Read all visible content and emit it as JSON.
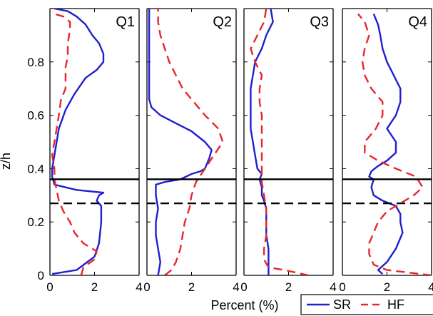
{
  "chart_data": {
    "type": "line",
    "orientation": "vertical-profiles",
    "ylabel": "z/h",
    "xlabel": "Percent (%)",
    "ylim": [
      0,
      1
    ],
    "yticks": [
      0,
      0.2,
      0.4,
      0.6,
      0.8
    ],
    "ytick_labels": [
      "0",
      "0.2",
      "0.4",
      "0.6",
      "0.8"
    ],
    "xlim": [
      0,
      4
    ],
    "xtick_labels": [
      "0",
      "2",
      "4"
    ],
    "reference_lines": [
      {
        "style": "solid",
        "z": 0.36
      },
      {
        "style": "dashed",
        "z": 0.27
      }
    ],
    "legend": {
      "placement": "bottom-right",
      "entries": [
        {
          "label": "SR",
          "color": "#1f1fcf",
          "style": "solid"
        },
        {
          "label": "HF",
          "color": "#e8272a",
          "style": "dashed"
        }
      ]
    },
    "series_styles": {
      "SR": {
        "color": "#1f1fcf",
        "dash": "solid"
      },
      "HF": {
        "color": "#e8272a",
        "dash": "dashed"
      }
    },
    "panels": [
      {
        "title": "Q1",
        "series": [
          {
            "name": "SR",
            "points": [
              [
                0.1,
                0.005
              ],
              [
                1.2,
                0.02
              ],
              [
                2.0,
                0.07
              ],
              [
                2.2,
                0.12
              ],
              [
                2.3,
                0.2
              ],
              [
                2.3,
                0.26
              ],
              [
                2.1,
                0.28
              ],
              [
                2.2,
                0.3
              ],
              [
                2.4,
                0.31
              ],
              [
                1.2,
                0.32
              ],
              [
                0.2,
                0.34
              ],
              [
                0.1,
                0.37
              ],
              [
                0.1,
                0.4
              ],
              [
                0.2,
                0.45
              ],
              [
                0.4,
                0.55
              ],
              [
                0.7,
                0.62
              ],
              [
                1.1,
                0.68
              ],
              [
                1.6,
                0.74
              ],
              [
                2.1,
                0.77
              ],
              [
                2.4,
                0.8
              ],
              [
                2.4,
                0.83
              ],
              [
                2.2,
                0.87
              ],
              [
                1.9,
                0.9
              ],
              [
                1.6,
                0.94
              ],
              [
                1.2,
                0.97
              ],
              [
                0.8,
                0.99
              ],
              [
                0.2,
                1.0
              ]
            ]
          },
          {
            "name": "HF",
            "points": [
              [
                1.4,
                0.0
              ],
              [
                1.5,
                0.03
              ],
              [
                2.0,
                0.06
              ],
              [
                2.1,
                0.09
              ],
              [
                1.5,
                0.12
              ],
              [
                1.1,
                0.16
              ],
              [
                0.9,
                0.2
              ],
              [
                0.6,
                0.24
              ],
              [
                0.4,
                0.28
              ],
              [
                0.3,
                0.32
              ],
              [
                0.2,
                0.36
              ],
              [
                0.2,
                0.4
              ],
              [
                0.1,
                0.45
              ],
              [
                0.2,
                0.5
              ],
              [
                0.3,
                0.55
              ],
              [
                0.4,
                0.6
              ],
              [
                0.5,
                0.66
              ],
              [
                0.7,
                0.7
              ],
              [
                0.7,
                0.78
              ],
              [
                0.8,
                0.82
              ],
              [
                0.8,
                0.87
              ],
              [
                0.9,
                0.92
              ],
              [
                0.9,
                0.95
              ],
              [
                0.6,
                0.97
              ],
              [
                0.2,
                0.98
              ],
              [
                0.1,
                0.99
              ]
            ]
          }
        ]
      },
      {
        "title": "Q2",
        "series": [
          {
            "name": "SR",
            "points": [
              [
                0.5,
                0.0
              ],
              [
                0.6,
                0.05
              ],
              [
                0.5,
                0.1
              ],
              [
                0.4,
                0.15
              ],
              [
                0.4,
                0.2
              ],
              [
                0.5,
                0.25
              ],
              [
                0.4,
                0.3
              ],
              [
                0.4,
                0.34
              ],
              [
                0.8,
                0.35
              ],
              [
                1.5,
                0.36
              ],
              [
                2.0,
                0.38
              ],
              [
                2.4,
                0.39
              ],
              [
                2.6,
                0.4
              ],
              [
                2.8,
                0.44
              ],
              [
                2.9,
                0.47
              ],
              [
                2.6,
                0.5
              ],
              [
                2.0,
                0.54
              ],
              [
                1.3,
                0.57
              ],
              [
                0.6,
                0.6
              ],
              [
                0.2,
                0.63
              ],
              [
                0.1,
                0.66
              ],
              [
                0.1,
                0.7
              ],
              [
                0.1,
                0.8
              ],
              [
                0.1,
                0.9
              ],
              [
                0.1,
                1.0
              ]
            ]
          },
          {
            "name": "HF",
            "points": [
              [
                0.8,
                0.0
              ],
              [
                1.1,
                0.02
              ],
              [
                1.3,
                0.05
              ],
              [
                1.5,
                0.1
              ],
              [
                1.6,
                0.15
              ],
              [
                1.7,
                0.2
              ],
              [
                1.9,
                0.25
              ],
              [
                2.0,
                0.3
              ],
              [
                2.2,
                0.35
              ],
              [
                2.6,
                0.4
              ],
              [
                3.0,
                0.45
              ],
              [
                3.4,
                0.5
              ],
              [
                3.2,
                0.55
              ],
              [
                2.6,
                0.6
              ],
              [
                2.1,
                0.65
              ],
              [
                1.6,
                0.7
              ],
              [
                1.3,
                0.75
              ],
              [
                1.0,
                0.8
              ],
              [
                0.8,
                0.85
              ],
              [
                0.6,
                0.9
              ],
              [
                0.5,
                0.95
              ],
              [
                0.5,
                1.0
              ]
            ]
          }
        ]
      },
      {
        "title": "Q3",
        "series": [
          {
            "name": "SR",
            "points": [
              [
                1.1,
                0.0
              ],
              [
                1.1,
                0.05
              ],
              [
                1.1,
                0.1
              ],
              [
                1.0,
                0.15
              ],
              [
                1.0,
                0.2
              ],
              [
                1.0,
                0.25
              ],
              [
                0.9,
                0.28
              ],
              [
                0.8,
                0.3
              ],
              [
                0.8,
                0.33
              ],
              [
                0.7,
                0.36
              ],
              [
                0.8,
                0.38
              ],
              [
                0.6,
                0.4
              ],
              [
                0.5,
                0.45
              ],
              [
                0.4,
                0.5
              ],
              [
                0.3,
                0.55
              ],
              [
                0.3,
                0.6
              ],
              [
                0.3,
                0.65
              ],
              [
                0.3,
                0.7
              ],
              [
                0.4,
                0.75
              ],
              [
                0.5,
                0.8
              ],
              [
                0.8,
                0.85
              ],
              [
                1.0,
                0.9
              ],
              [
                1.3,
                0.95
              ],
              [
                1.2,
                1.0
              ]
            ]
          },
          {
            "name": "HF",
            "points": [
              [
                2.9,
                0.0
              ],
              [
                1.8,
                0.02
              ],
              [
                1.1,
                0.03
              ],
              [
                0.9,
                0.06
              ],
              [
                0.9,
                0.1
              ],
              [
                1.0,
                0.15
              ],
              [
                1.0,
                0.2
              ],
              [
                1.0,
                0.25
              ],
              [
                0.9,
                0.3
              ],
              [
                0.8,
                0.35
              ],
              [
                0.8,
                0.4
              ],
              [
                0.8,
                0.45
              ],
              [
                0.8,
                0.5
              ],
              [
                0.8,
                0.55
              ],
              [
                0.8,
                0.6
              ],
              [
                0.7,
                0.65
              ],
              [
                0.7,
                0.7
              ],
              [
                0.8,
                0.75
              ],
              [
                0.5,
                0.8
              ],
              [
                0.3,
                0.85
              ],
              [
                0.6,
                0.9
              ],
              [
                0.9,
                0.95
              ],
              [
                1.0,
                1.0
              ]
            ]
          }
        ]
      },
      {
        "title": "Q4",
        "series": [
          {
            "name": "SR",
            "points": [
              [
                1.8,
                0.005
              ],
              [
                1.6,
                0.02
              ],
              [
                2.0,
                0.05
              ],
              [
                2.4,
                0.1
              ],
              [
                2.7,
                0.16
              ],
              [
                2.6,
                0.2
              ],
              [
                2.6,
                0.23
              ],
              [
                2.4,
                0.26
              ],
              [
                1.8,
                0.28
              ],
              [
                1.4,
                0.3
              ],
              [
                1.3,
                0.33
              ],
              [
                1.4,
                0.36
              ],
              [
                1.2,
                0.37
              ],
              [
                1.3,
                0.39
              ],
              [
                1.6,
                0.41
              ],
              [
                2.0,
                0.43
              ],
              [
                2.4,
                0.46
              ],
              [
                2.4,
                0.5
              ],
              [
                2.0,
                0.55
              ],
              [
                2.4,
                0.6
              ],
              [
                2.6,
                0.65
              ],
              [
                2.6,
                0.7
              ],
              [
                2.3,
                0.75
              ],
              [
                2.0,
                0.8
              ],
              [
                1.8,
                0.85
              ],
              [
                1.7,
                0.9
              ],
              [
                1.6,
                0.94
              ],
              [
                1.4,
                0.98
              ]
            ]
          },
          {
            "name": "HF",
            "points": [
              [
                4.0,
                0.0
              ],
              [
                2.0,
                0.02
              ],
              [
                1.4,
                0.04
              ],
              [
                1.2,
                0.08
              ],
              [
                1.2,
                0.12
              ],
              [
                1.4,
                0.16
              ],
              [
                1.6,
                0.2
              ],
              [
                2.0,
                0.24
              ],
              [
                2.6,
                0.27
              ],
              [
                3.2,
                0.3
              ],
              [
                3.6,
                0.33
              ],
              [
                3.3,
                0.37
              ],
              [
                2.4,
                0.4
              ],
              [
                1.6,
                0.43
              ],
              [
                1.0,
                0.46
              ],
              [
                1.0,
                0.5
              ],
              [
                1.5,
                0.55
              ],
              [
                1.8,
                0.6
              ],
              [
                1.8,
                0.65
              ],
              [
                1.3,
                0.7
              ],
              [
                1.0,
                0.75
              ],
              [
                0.9,
                0.8
              ],
              [
                1.0,
                0.85
              ],
              [
                1.2,
                0.9
              ],
              [
                1.0,
                0.95
              ],
              [
                0.7,
                0.98
              ]
            ]
          }
        ]
      }
    ]
  }
}
